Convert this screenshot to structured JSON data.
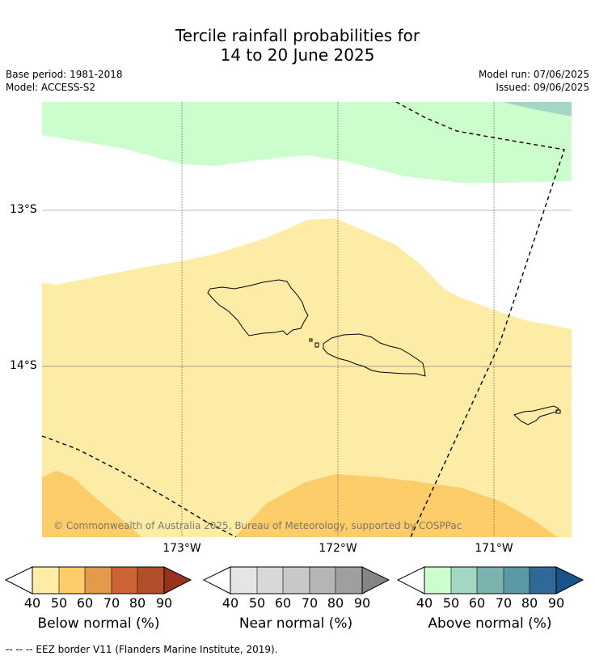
{
  "title": {
    "line1": "Tercile rainfall probabilities for",
    "line2": "14 to 20 June 2025"
  },
  "meta": {
    "base_period": "Base period: 1981-2018",
    "model": "Model: ACCESS-S2",
    "model_run": "Model run: 07/06/2025",
    "issued": "Issued: 09/06/2025"
  },
  "map": {
    "lat_labels": [
      "13°S",
      "14°S"
    ],
    "lon_labels": [
      "173°W",
      "172°W",
      "171°W"
    ],
    "copyright": "© Commonwealth of Australia 2025, Bureau of Meteorology, supported by COSPPac",
    "colors": {
      "below_40_50": "#fdeca6",
      "below_50_60": "#fdcd6a",
      "above_40_50": "#ccfdcc",
      "above_50_60": "#a1d7c3",
      "land_outline": "#000000"
    }
  },
  "colorbars": [
    {
      "label": "Below normal (%)",
      "ticks": [
        "40",
        "50",
        "60",
        "70",
        "80",
        "90"
      ],
      "colors": [
        "#fdeca6",
        "#fdcd6a",
        "#e39a4a",
        "#cd6434",
        "#b24f2a",
        "#98321e"
      ]
    },
    {
      "label": "Near normal (%)",
      "ticks": [
        "40",
        "50",
        "60",
        "70",
        "80",
        "90"
      ],
      "colors": [
        "#e5e5e5",
        "#d8d8d8",
        "#c8c8c8",
        "#b5b5b5",
        "#9f9f9f",
        "#858585"
      ]
    },
    {
      "label": "Above normal (%)",
      "ticks": [
        "40",
        "50",
        "60",
        "70",
        "80",
        "90"
      ],
      "colors": [
        "#ccfdcc",
        "#a1d7c3",
        "#7db3ae",
        "#5b9aa4",
        "#306898",
        "#17548a"
      ]
    }
  ],
  "footer": "--  --  -- EEZ border V11 (Flanders Marine Institute, 2019)."
}
